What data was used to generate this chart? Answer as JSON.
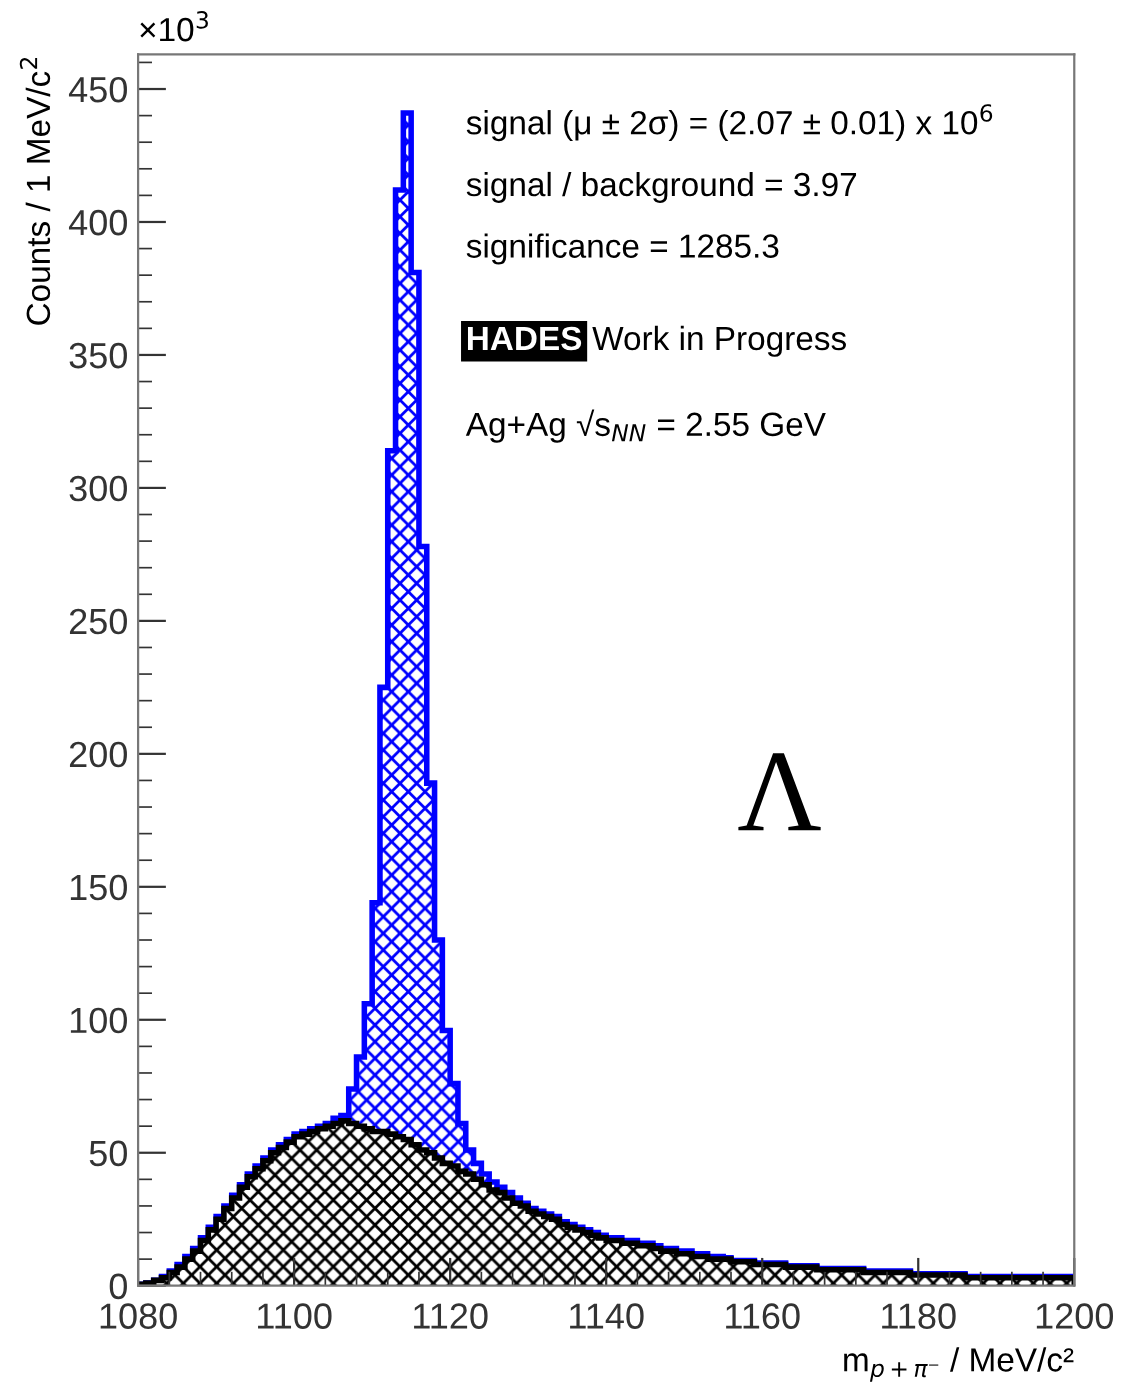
{
  "chart_data": {
    "type": "histogram",
    "xlabel": "m$_{p+π⁻}$ / MeV/c²",
    "ylabel": "Counts / 1 MeV/c$^{2}$",
    "annotations": [
      "×10$^{3}$",
      "signal (μ ± 2σ) = (2.07 ± 0.01) x 10$^{6}$",
      "signal / background = 3.97",
      "significance = 1285.3",
      "HADES",
      "Work in Progress",
      "Ag+Ag √s$_{NN}$ = 2.55 GeV",
      "Λ"
    ],
    "bins": [
      1080,
      1081,
      1082,
      1083,
      1084,
      1085,
      1086,
      1087,
      1088,
      1089,
      1090,
      1091,
      1092,
      1093,
      1094,
      1095,
      1096,
      1097,
      1098,
      1099,
      1100,
      1101,
      1102,
      1103,
      1104,
      1105,
      1106,
      1107,
      1108,
      1109,
      1110,
      1111,
      1112,
      1113,
      1114,
      1115,
      1116,
      1117,
      1118,
      1119,
      1120,
      1121,
      1122,
      1123,
      1124,
      1125,
      1126,
      1127,
      1128,
      1129,
      1130,
      1131,
      1132,
      1133,
      1134,
      1135,
      1136,
      1137,
      1138,
      1139,
      1140,
      1141,
      1142,
      1143,
      1144,
      1145,
      1146,
      1147,
      1148,
      1149,
      1150,
      1151,
      1152,
      1153,
      1154,
      1155,
      1156,
      1157,
      1158,
      1159,
      1160,
      1161,
      1162,
      1163,
      1164,
      1165,
      1166,
      1167,
      1168,
      1169,
      1170,
      1171,
      1172,
      1173,
      1174,
      1175,
      1176,
      1177,
      1178,
      1179,
      1180,
      1181,
      1182,
      1183,
      1184,
      1185,
      1186,
      1187,
      1188,
      1189,
      1190,
      1191,
      1192,
      1193,
      1194,
      1195,
      1196,
      1197,
      1198,
      1199,
      1200
    ],
    "series": [
      {
        "color": "#0000ff",
        "values": [
          0.5,
          1,
          2,
          3.5,
          5.5,
          8,
          11,
          14,
          18,
          22,
          26,
          30,
          34,
          38,
          42,
          45,
          48,
          51,
          53,
          55,
          57,
          58,
          59,
          60,
          61,
          63,
          64,
          74,
          86,
          106,
          144,
          225,
          314,
          412,
          441,
          381,
          278,
          189,
          130,
          96,
          76,
          61,
          51,
          46,
          42,
          39,
          37,
          35,
          33,
          31,
          29,
          28,
          27,
          26,
          24,
          23,
          22,
          21,
          20,
          19,
          18,
          18,
          17,
          17,
          16,
          16,
          15,
          14,
          14,
          13,
          13,
          12,
          12,
          11,
          11,
          10.5,
          9.5,
          9.5,
          9.5,
          8.5,
          8.5,
          8.5,
          8.5,
          7.5,
          7.5,
          7.5,
          7.5,
          6.5,
          6.5,
          6.5,
          6.5,
          6.5,
          6.5,
          5.5,
          5.5,
          5.5,
          5.5,
          5.5,
          5.5,
          4.5,
          4.5,
          4.5,
          4.5,
          4.5,
          4.5,
          4.5,
          3.5,
          3.5,
          3.5,
          3.5,
          3.5,
          3.5,
          3.5,
          3.5,
          3.5,
          3.5,
          3.5,
          3.5,
          3.5,
          3.5
        ]
      },
      {
        "color": "#000000",
        "values": [
          0.5,
          1,
          2,
          3,
          5,
          7,
          10,
          13,
          17,
          21,
          25,
          29,
          33,
          37,
          41,
          44,
          47,
          50,
          52,
          54,
          56,
          57,
          58,
          59,
          60,
          61,
          62,
          61,
          60,
          59,
          58,
          58,
          57,
          56,
          55,
          53,
          51,
          50,
          48,
          46,
          45,
          43,
          42,
          40,
          38,
          36,
          35,
          33,
          31,
          30,
          28,
          27,
          26,
          25,
          23,
          22,
          21,
          20,
          19,
          18,
          17,
          17,
          16,
          16,
          15,
          15,
          14,
          13,
          13,
          12,
          12,
          11,
          11,
          10,
          10,
          10,
          9,
          9,
          9,
          8,
          8,
          8,
          8,
          7,
          7,
          7,
          7,
          6,
          6,
          6,
          6,
          6,
          6,
          5,
          5,
          5,
          5,
          5,
          5,
          4,
          4,
          4,
          4,
          4,
          4,
          4,
          3,
          3,
          3,
          3,
          3,
          3,
          3,
          3,
          3,
          3,
          3,
          3,
          3,
          3
        ]
      }
    ],
    "xlim": [
      1080,
      1200
    ],
    "ylim": [
      0,
      463
    ],
    "xticks": [
      1080,
      1100,
      1120,
      1140,
      1160,
      1180,
      1200
    ],
    "yticks": [
      0,
      50,
      100,
      150,
      200,
      250,
      300,
      350,
      400,
      450
    ],
    "grid": false,
    "legend": false
  }
}
